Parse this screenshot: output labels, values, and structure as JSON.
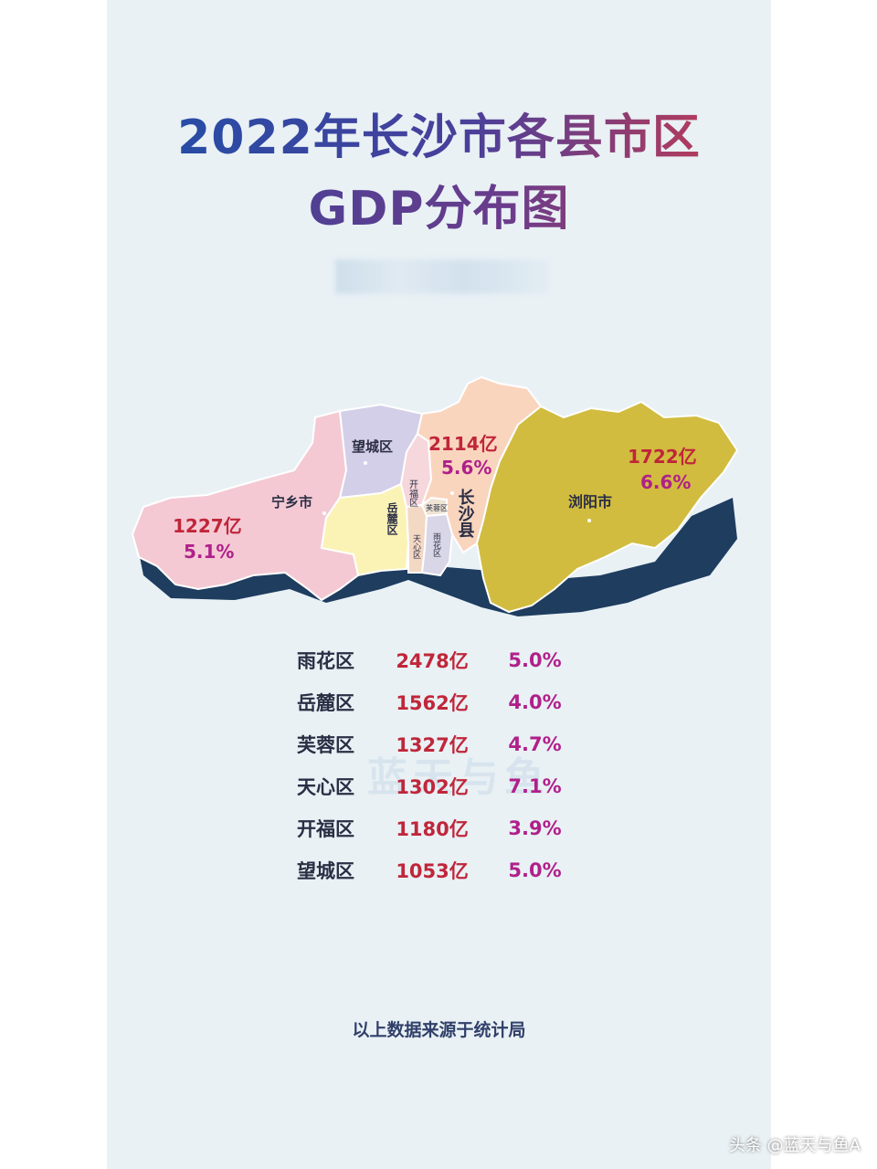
{
  "title": {
    "line1": "2022年长沙市各县市区",
    "line2": "GDP分布图"
  },
  "map": {
    "labels": {
      "wangcheng": "望城区",
      "ningxiang": "宁乡市",
      "kaifu": "开福区",
      "yuelu": "岳麓区",
      "furong": "芙蓉区",
      "tianxin": "天心区",
      "yuhua": "雨花区",
      "changsha_county": "长沙县",
      "liuyang": "浏阳市"
    },
    "values": {
      "ningxiang_gdp": "1227亿",
      "ningxiang_rate": "5.1%",
      "changsha_county_gdp": "2114亿",
      "changsha_county_rate": "5.6%",
      "liuyang_gdp": "1722亿",
      "liuyang_rate": "6.6%"
    },
    "colors": {
      "ningxiang": "#f4c9d4",
      "wangcheng": "#d4cfe8",
      "kaifu": "#f6d7dc",
      "yuelu": "#fbf3b6",
      "tianxin": "#f3d8c4",
      "yuhua": "#d9d6e8",
      "changsha_county": "#f9d5be",
      "liuyang": "#d1bc3f",
      "shadow": "#1e3d5f"
    }
  },
  "table": [
    {
      "name": "雨花区",
      "gdp": "2478亿",
      "rate": "5.0%"
    },
    {
      "name": "岳麓区",
      "gdp": "1562亿",
      "rate": "4.0%"
    },
    {
      "name": "芙蓉区",
      "gdp": "1327亿",
      "rate": "4.7%"
    },
    {
      "name": "天心区",
      "gdp": "1302亿",
      "rate": "7.1%"
    },
    {
      "name": "开福区",
      "gdp": "1180亿",
      "rate": "3.9%"
    },
    {
      "name": "望城区",
      "gdp": "1053亿",
      "rate": "5.0%"
    }
  ],
  "watermark": "蓝天与鱼",
  "source": "以上数据来源于统计局",
  "credit": "头条 @蓝天与鱼A"
}
